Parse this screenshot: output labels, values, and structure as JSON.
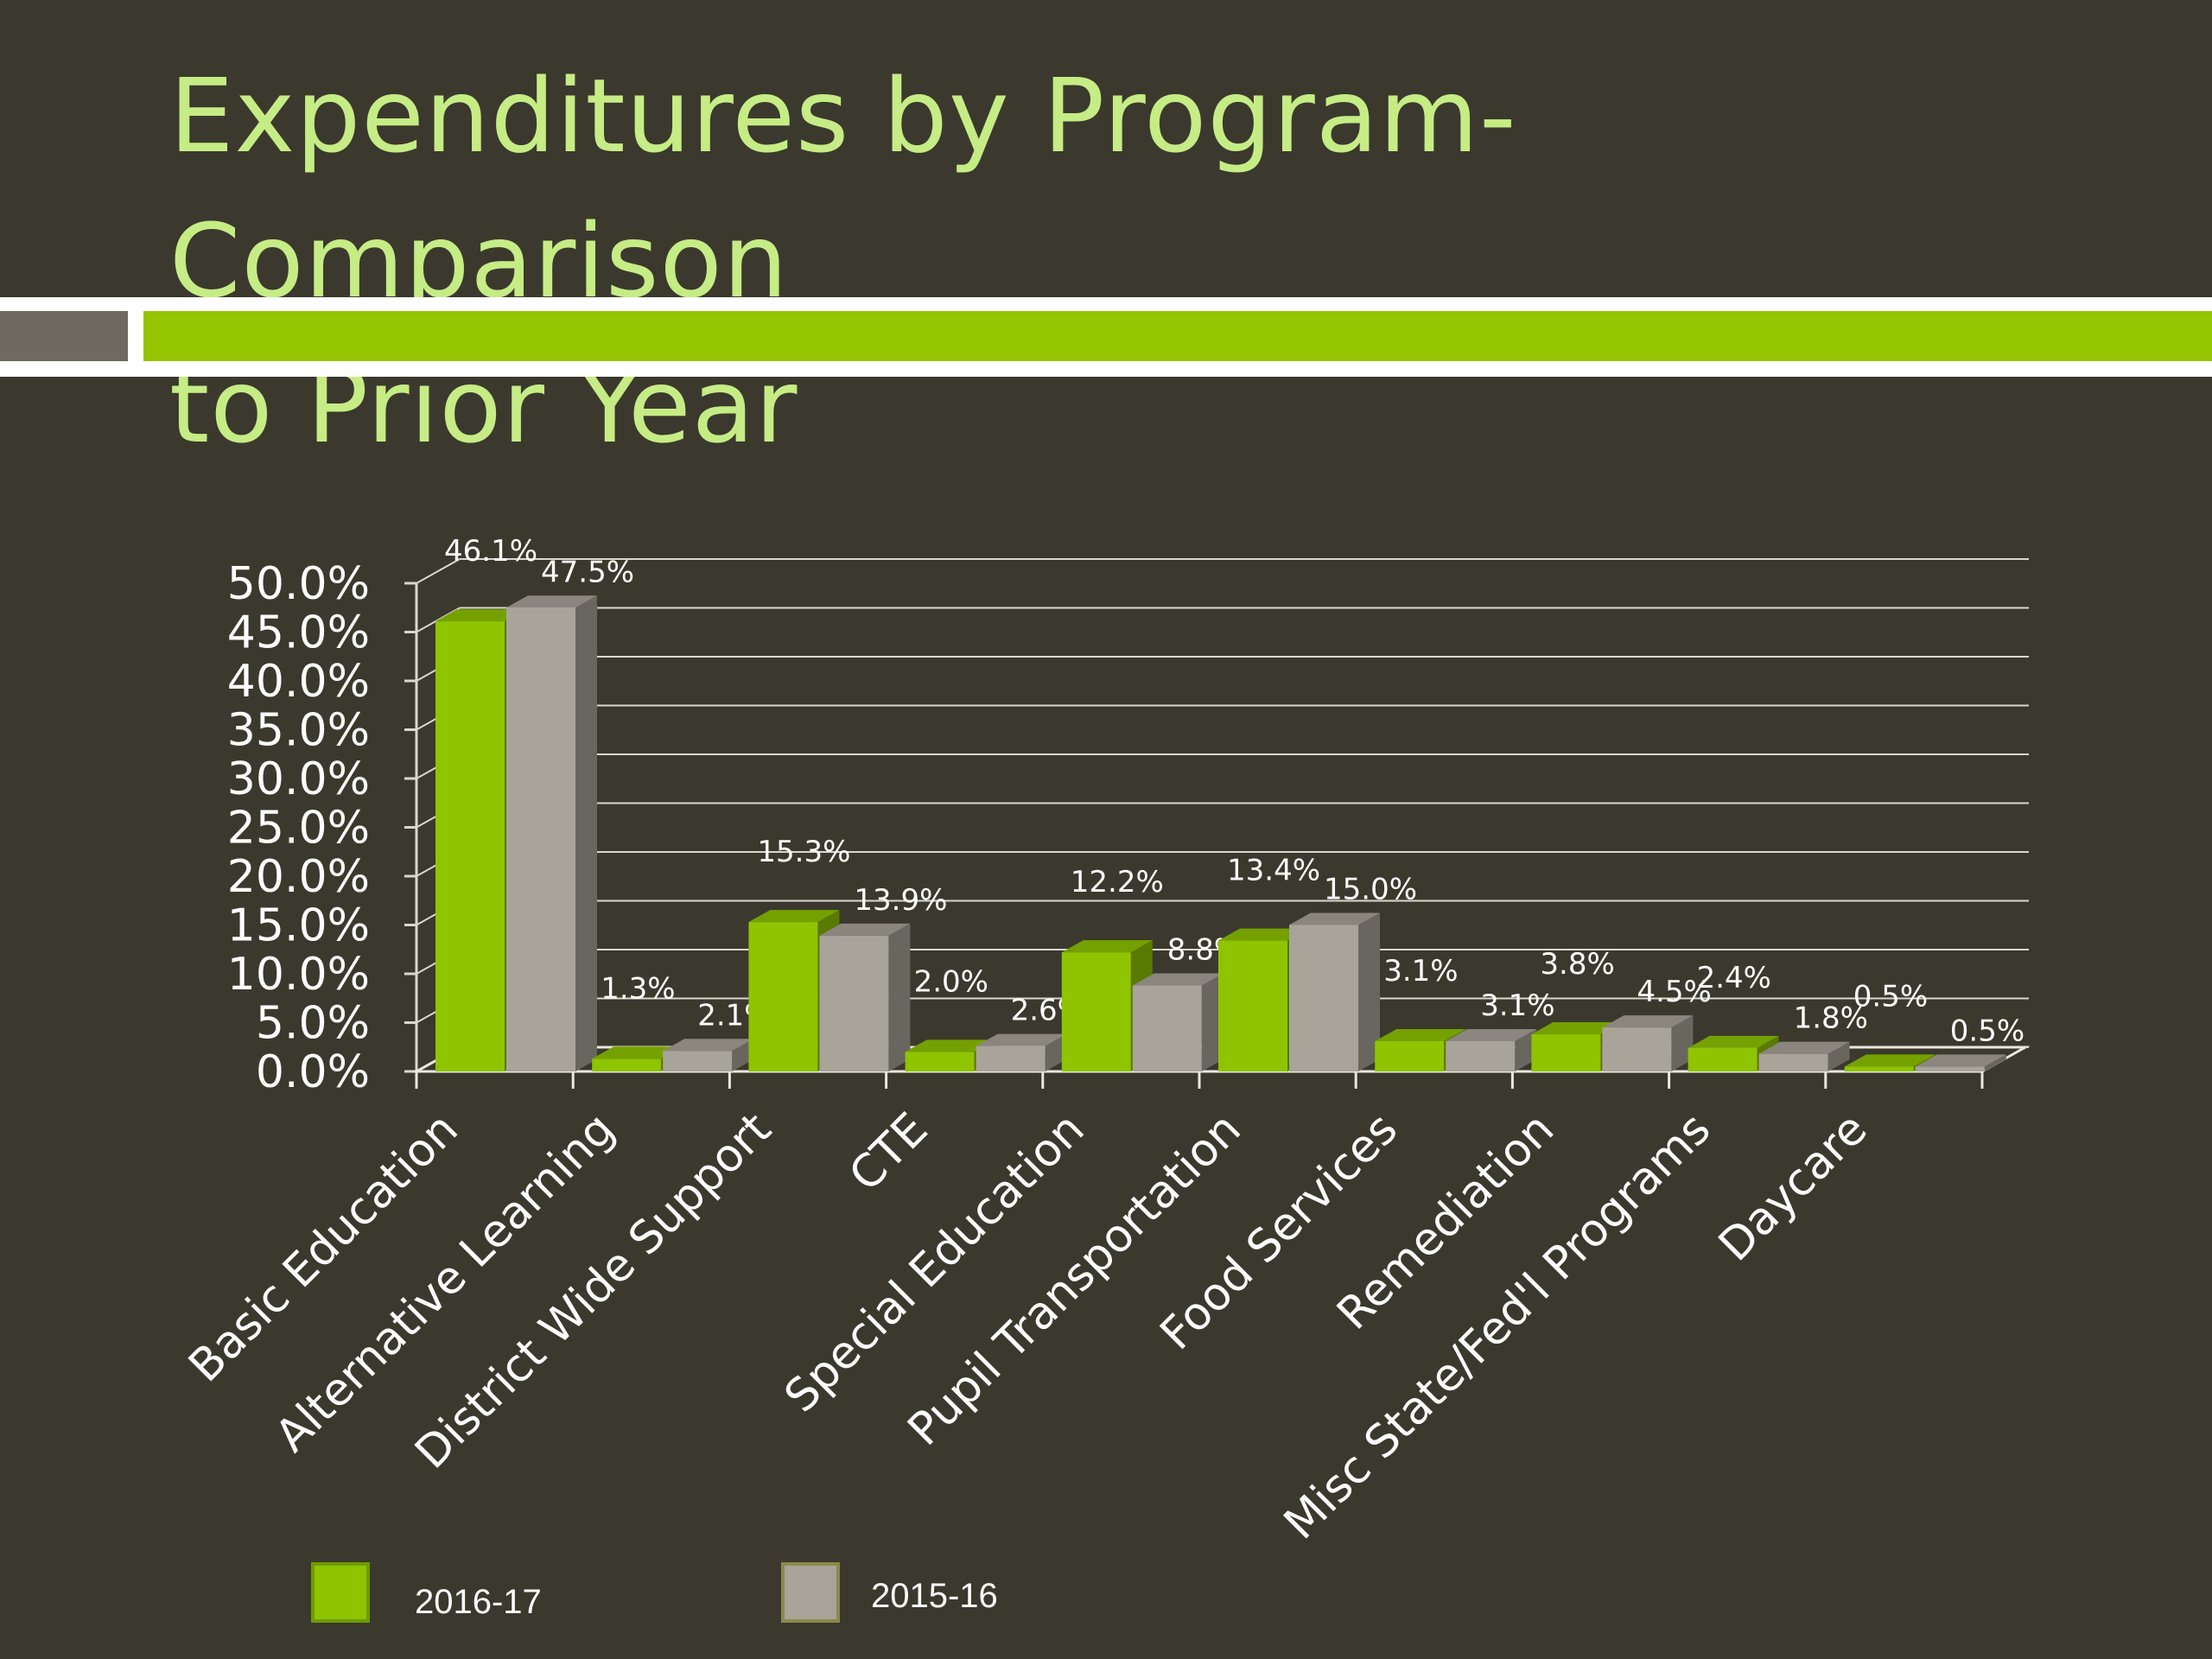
{
  "slide": {
    "title_line1": "Expenditures by Program-Comparison",
    "title_line2": "to Prior Year"
  },
  "colors": {
    "background": "#3b392d",
    "title": "#c6ec85",
    "accent_green": "#95c400",
    "accent_grey": "#6f695f",
    "series_2016_17": "#8fc400",
    "series_2015_16": "#a8a49a"
  },
  "chart_data": {
    "type": "bar",
    "style": "3d-clustered-column",
    "title": "",
    "xlabel": "",
    "ylabel": "",
    "ylim": [
      0,
      50
    ],
    "y_ticks": [
      "0.0%",
      "5.0%",
      "10.0%",
      "15.0%",
      "20.0%",
      "25.0%",
      "30.0%",
      "35.0%",
      "40.0%",
      "45.0%",
      "50.0%"
    ],
    "grid": true,
    "legend_position": "bottom",
    "categories": [
      "Basic Education",
      "Alternative Learning",
      "District Wide Support",
      "CTE",
      "Special Education",
      "Pupil Transportation",
      "Food Services",
      "Remediation",
      "Misc State/Fed'l Programs",
      "Daycare"
    ],
    "series": [
      {
        "name": "2016-17",
        "values": [
          46.1,
          1.3,
          15.3,
          2.0,
          12.2,
          13.4,
          3.1,
          3.8,
          2.4,
          0.5
        ],
        "labels": [
          "46.1%",
          "1.3%",
          "15.3%",
          "2.0%",
          "12.2%",
          "13.4%",
          "3.1%",
          "3.8%",
          "2.4%",
          "0.5%"
        ]
      },
      {
        "name": "2015-16",
        "values": [
          47.5,
          2.1,
          13.9,
          2.6,
          8.8,
          15.0,
          3.1,
          4.5,
          1.8,
          0.5
        ],
        "labels": [
          "47.5%",
          "2.1%",
          "13.9%",
          "2.6%",
          "8.8%",
          "15.0%",
          "3.1%",
          "4.5%",
          "1.8%",
          "0.5%"
        ]
      }
    ]
  }
}
